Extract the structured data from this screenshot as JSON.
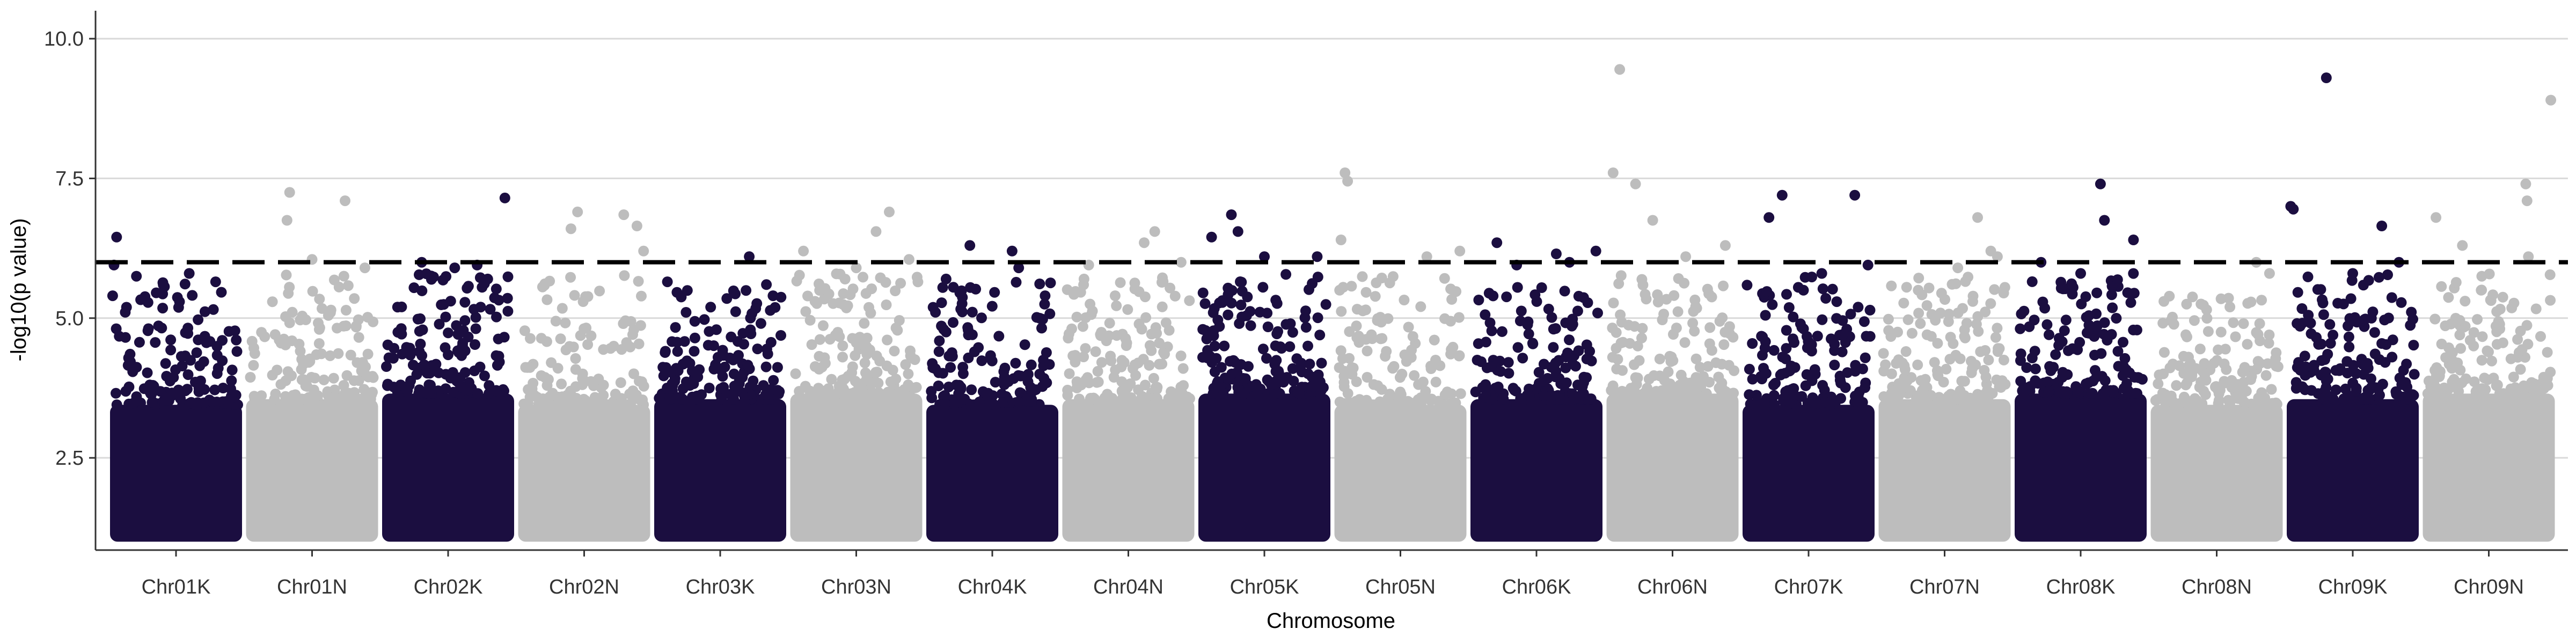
{
  "chart_data": {
    "type": "scatter",
    "subtype": "manhattan",
    "title": "",
    "xlabel": "Chromosome",
    "ylabel": "-log10(p value)",
    "ylim": [
      0.85,
      10.5
    ],
    "yticks": [
      2.5,
      5.0,
      7.5,
      10.0
    ],
    "ytick_labels": [
      "2.5",
      "5.0",
      "7.5",
      "10.0"
    ],
    "grid": "horizontal-major",
    "legend": "none",
    "threshold": 6.0,
    "colors": {
      "odd": "#1b0e40",
      "even": "#bdbdbd",
      "threshold": "#000000",
      "grid": "#d9d9d9",
      "axis": "#333333"
    },
    "categories": [
      "Chr01K",
      "Chr01N",
      "Chr02K",
      "Chr02N",
      "Chr03K",
      "Chr03N",
      "Chr04K",
      "Chr04N",
      "Chr05K",
      "Chr05N",
      "Chr06K",
      "Chr06N",
      "Chr07K",
      "Chr07N",
      "Chr08K",
      "Chr08N",
      "Chr09K",
      "Chr09N"
    ],
    "series": [
      {
        "chromosome": "Chr01K",
        "peak": 6.45,
        "top_points": [
          [
            0.05,
            6.45
          ],
          [
            0.03,
            5.95
          ],
          [
            0.2,
            5.75
          ],
          [
            0.6,
            5.8
          ],
          [
            0.8,
            5.65
          ],
          [
            0.02,
            5.4
          ]
        ]
      },
      {
        "chromosome": "Chr01N",
        "peak": 7.25,
        "top_points": [
          [
            0.33,
            7.25
          ],
          [
            0.31,
            6.75
          ],
          [
            0.75,
            7.1
          ],
          [
            0.5,
            6.05
          ],
          [
            0.9,
            5.9
          ]
        ]
      },
      {
        "chromosome": "Chr02K",
        "peak": 7.15,
        "top_points": [
          [
            0.93,
            7.15
          ],
          [
            0.3,
            6.0
          ],
          [
            0.55,
            5.9
          ],
          [
            0.72,
            5.95
          ],
          [
            0.8,
            5.7
          ]
        ]
      },
      {
        "chromosome": "Chr02N",
        "peak": 6.9,
        "top_points": [
          [
            0.45,
            6.9
          ],
          [
            0.4,
            6.6
          ],
          [
            0.8,
            6.85
          ],
          [
            0.9,
            6.65
          ],
          [
            0.95,
            6.2
          ]
        ]
      },
      {
        "chromosome": "Chr03K",
        "peak": 6.1,
        "top_points": [
          [
            0.72,
            6.1
          ],
          [
            0.1,
            5.65
          ],
          [
            0.85,
            5.6
          ],
          [
            0.9,
            5.4
          ],
          [
            0.55,
            5.35
          ]
        ]
      },
      {
        "chromosome": "Chr03N",
        "peak": 6.9,
        "top_points": [
          [
            0.75,
            6.9
          ],
          [
            0.65,
            6.55
          ],
          [
            0.1,
            6.2
          ],
          [
            0.9,
            6.05
          ],
          [
            0.5,
            5.9
          ]
        ]
      },
      {
        "chromosome": "Chr04K",
        "peak": 6.3,
        "top_points": [
          [
            0.33,
            6.3
          ],
          [
            0.65,
            6.2
          ],
          [
            0.7,
            5.9
          ],
          [
            0.15,
            5.7
          ],
          [
            0.9,
            5.4
          ]
        ]
      },
      {
        "chromosome": "Chr04N",
        "peak": 6.55,
        "top_points": [
          [
            0.7,
            6.55
          ],
          [
            0.62,
            6.35
          ],
          [
            0.2,
            5.95
          ],
          [
            0.9,
            6.0
          ],
          [
            0.4,
            5.4
          ]
        ]
      },
      {
        "chromosome": "Chr05K",
        "peak": 6.85,
        "top_points": [
          [
            0.25,
            6.85
          ],
          [
            0.1,
            6.45
          ],
          [
            0.3,
            6.55
          ],
          [
            0.5,
            6.1
          ],
          [
            0.9,
            6.1
          ]
        ]
      },
      {
        "chromosome": "Chr05N",
        "peak": 7.6,
        "top_points": [
          [
            0.08,
            7.6
          ],
          [
            0.1,
            7.45
          ],
          [
            0.05,
            6.4
          ],
          [
            0.7,
            6.1
          ],
          [
            0.95,
            6.2
          ]
        ]
      },
      {
        "chromosome": "Chr06K",
        "peak": 6.35,
        "top_points": [
          [
            0.2,
            6.35
          ],
          [
            0.35,
            5.95
          ],
          [
            0.65,
            6.15
          ],
          [
            0.75,
            6.0
          ],
          [
            0.95,
            6.2
          ]
        ]
      },
      {
        "chromosome": "Chr06N",
        "peak": 9.45,
        "top_points": [
          [
            0.1,
            9.45
          ],
          [
            0.05,
            7.6
          ],
          [
            0.22,
            7.4
          ],
          [
            0.35,
            6.75
          ],
          [
            0.6,
            6.1
          ],
          [
            0.9,
            6.3
          ]
        ]
      },
      {
        "chromosome": "Chr07K",
        "peak": 7.2,
        "top_points": [
          [
            0.3,
            7.2
          ],
          [
            0.2,
            6.8
          ],
          [
            0.85,
            7.2
          ],
          [
            0.95,
            5.95
          ],
          [
            0.6,
            5.8
          ]
        ]
      },
      {
        "chromosome": "Chr07N",
        "peak": 6.8,
        "top_points": [
          [
            0.75,
            6.8
          ],
          [
            0.85,
            6.2
          ],
          [
            0.6,
            5.9
          ],
          [
            0.9,
            6.1
          ],
          [
            0.3,
            5.5
          ]
        ]
      },
      {
        "chromosome": "Chr08K",
        "peak": 7.4,
        "top_points": [
          [
            0.65,
            7.4
          ],
          [
            0.68,
            6.75
          ],
          [
            0.9,
            6.4
          ],
          [
            0.2,
            6.0
          ],
          [
            0.5,
            5.8
          ]
        ]
      },
      {
        "chromosome": "Chr08N",
        "peak": 6.0,
        "top_points": [
          [
            0.8,
            6.0
          ],
          [
            0.9,
            5.8
          ],
          [
            0.1,
            5.3
          ],
          [
            0.6,
            5.2
          ]
        ]
      },
      {
        "chromosome": "Chr09K",
        "peak": 9.3,
        "top_points": [
          [
            0.3,
            9.3
          ],
          [
            0.03,
            7.0
          ],
          [
            0.05,
            6.95
          ],
          [
            0.72,
            6.65
          ],
          [
            0.85,
            6.0
          ],
          [
            0.5,
            5.8
          ]
        ]
      },
      {
        "chromosome": "Chr09N",
        "peak": 8.9,
        "top_points": [
          [
            0.97,
            8.9
          ],
          [
            0.78,
            7.4
          ],
          [
            0.79,
            7.1
          ],
          [
            0.8,
            6.1
          ],
          [
            0.1,
            6.8
          ],
          [
            0.3,
            6.3
          ]
        ]
      }
    ]
  }
}
